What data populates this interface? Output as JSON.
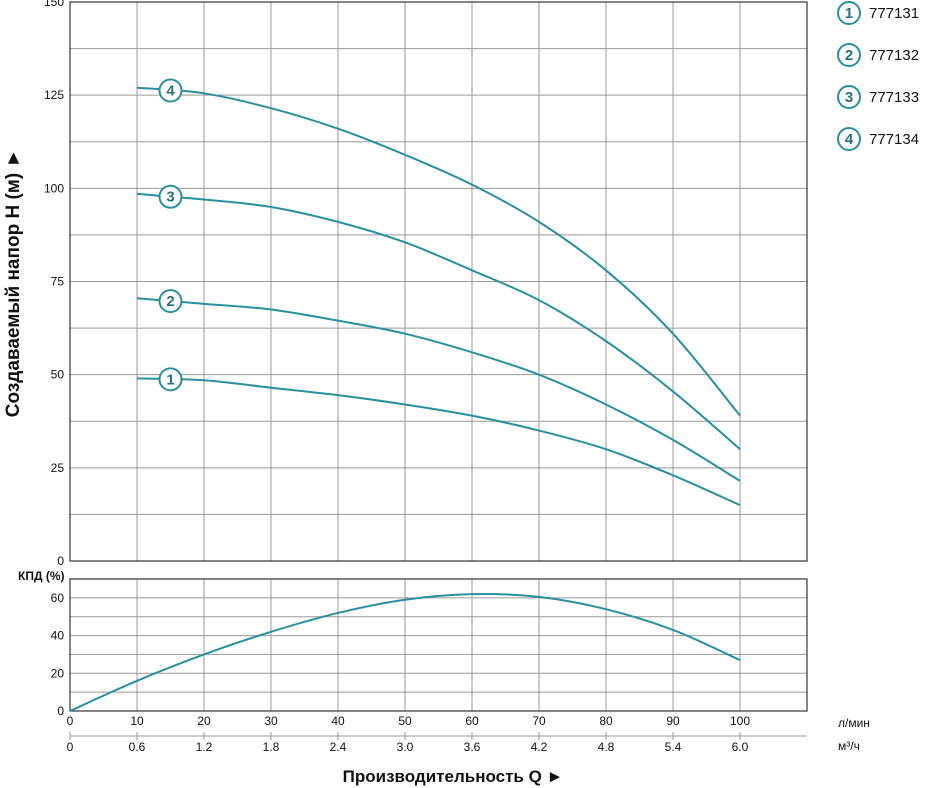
{
  "chart_data": [
    {
      "type": "line",
      "name": "head",
      "ylabel": "Создаваемый напор H (м) ►",
      "ylim": [
        0,
        150
      ],
      "y_ticks": [
        "0",
        "25",
        "50",
        "75",
        "100",
        "125",
        "150"
      ],
      "x_unit": "л/мин",
      "grid": true,
      "series": [
        {
          "name": "777131",
          "marker": "1",
          "x": [
            10,
            20,
            30,
            40,
            50,
            60,
            70,
            80,
            90,
            100
          ],
          "values": [
            49,
            48.5,
            46.5,
            44.5,
            42,
            39,
            35,
            30,
            23,
            15
          ]
        },
        {
          "name": "777132",
          "marker": "2",
          "x": [
            10,
            20,
            30,
            40,
            50,
            60,
            70,
            80,
            90,
            100
          ],
          "values": [
            70.5,
            69,
            67.5,
            64.5,
            61,
            56,
            50,
            42,
            32.5,
            21.5
          ]
        },
        {
          "name": "777133",
          "marker": "3",
          "x": [
            10,
            20,
            30,
            40,
            50,
            60,
            70,
            80,
            90,
            100
          ],
          "values": [
            98.5,
            97,
            95,
            91,
            85.5,
            78,
            70,
            59,
            45.5,
            30
          ]
        },
        {
          "name": "777134",
          "marker": "4",
          "x": [
            10,
            20,
            30,
            40,
            50,
            60,
            70,
            80,
            90,
            100
          ],
          "values": [
            127,
            125.5,
            121.5,
            116,
            109,
            101,
            91,
            78,
            61,
            39
          ]
        }
      ]
    },
    {
      "type": "line",
      "name": "efficiency",
      "ylabel": "КПД (%)",
      "ylim": [
        0,
        70
      ],
      "y_ticks": [
        "0",
        "20",
        "40",
        "60"
      ],
      "grid": true,
      "series": [
        {
          "x": [
            0,
            10,
            20,
            30,
            40,
            50,
            60,
            70,
            80,
            90,
            100
          ],
          "values": [
            0,
            16,
            30,
            42,
            52,
            59,
            62,
            60.5,
            54,
            43,
            27
          ]
        }
      ]
    }
  ],
  "x_axis": {
    "lpm_ticks": [
      "0",
      "10",
      "20",
      "30",
      "40",
      "50",
      "60",
      "70",
      "80",
      "90",
      "100"
    ],
    "lpm_unit": "л/мин",
    "m3h_ticks": [
      "0",
      "0.6",
      "1.2",
      "1.8",
      "2.4",
      "3.0",
      "3.6",
      "4.2",
      "4.8",
      "5.4",
      "6.0"
    ],
    "m3h_unit": "м³/ч",
    "title": "Производительность Q ►"
  },
  "legend": [
    {
      "marker": "1",
      "label": "777131"
    },
    {
      "marker": "2",
      "label": "777132"
    },
    {
      "marker": "3",
      "label": "777133"
    },
    {
      "marker": "4",
      "label": "777134"
    }
  ],
  "colors": {
    "curve": "#2a8f9e",
    "grid": "#9a9a9a",
    "frame": "#333333"
  }
}
